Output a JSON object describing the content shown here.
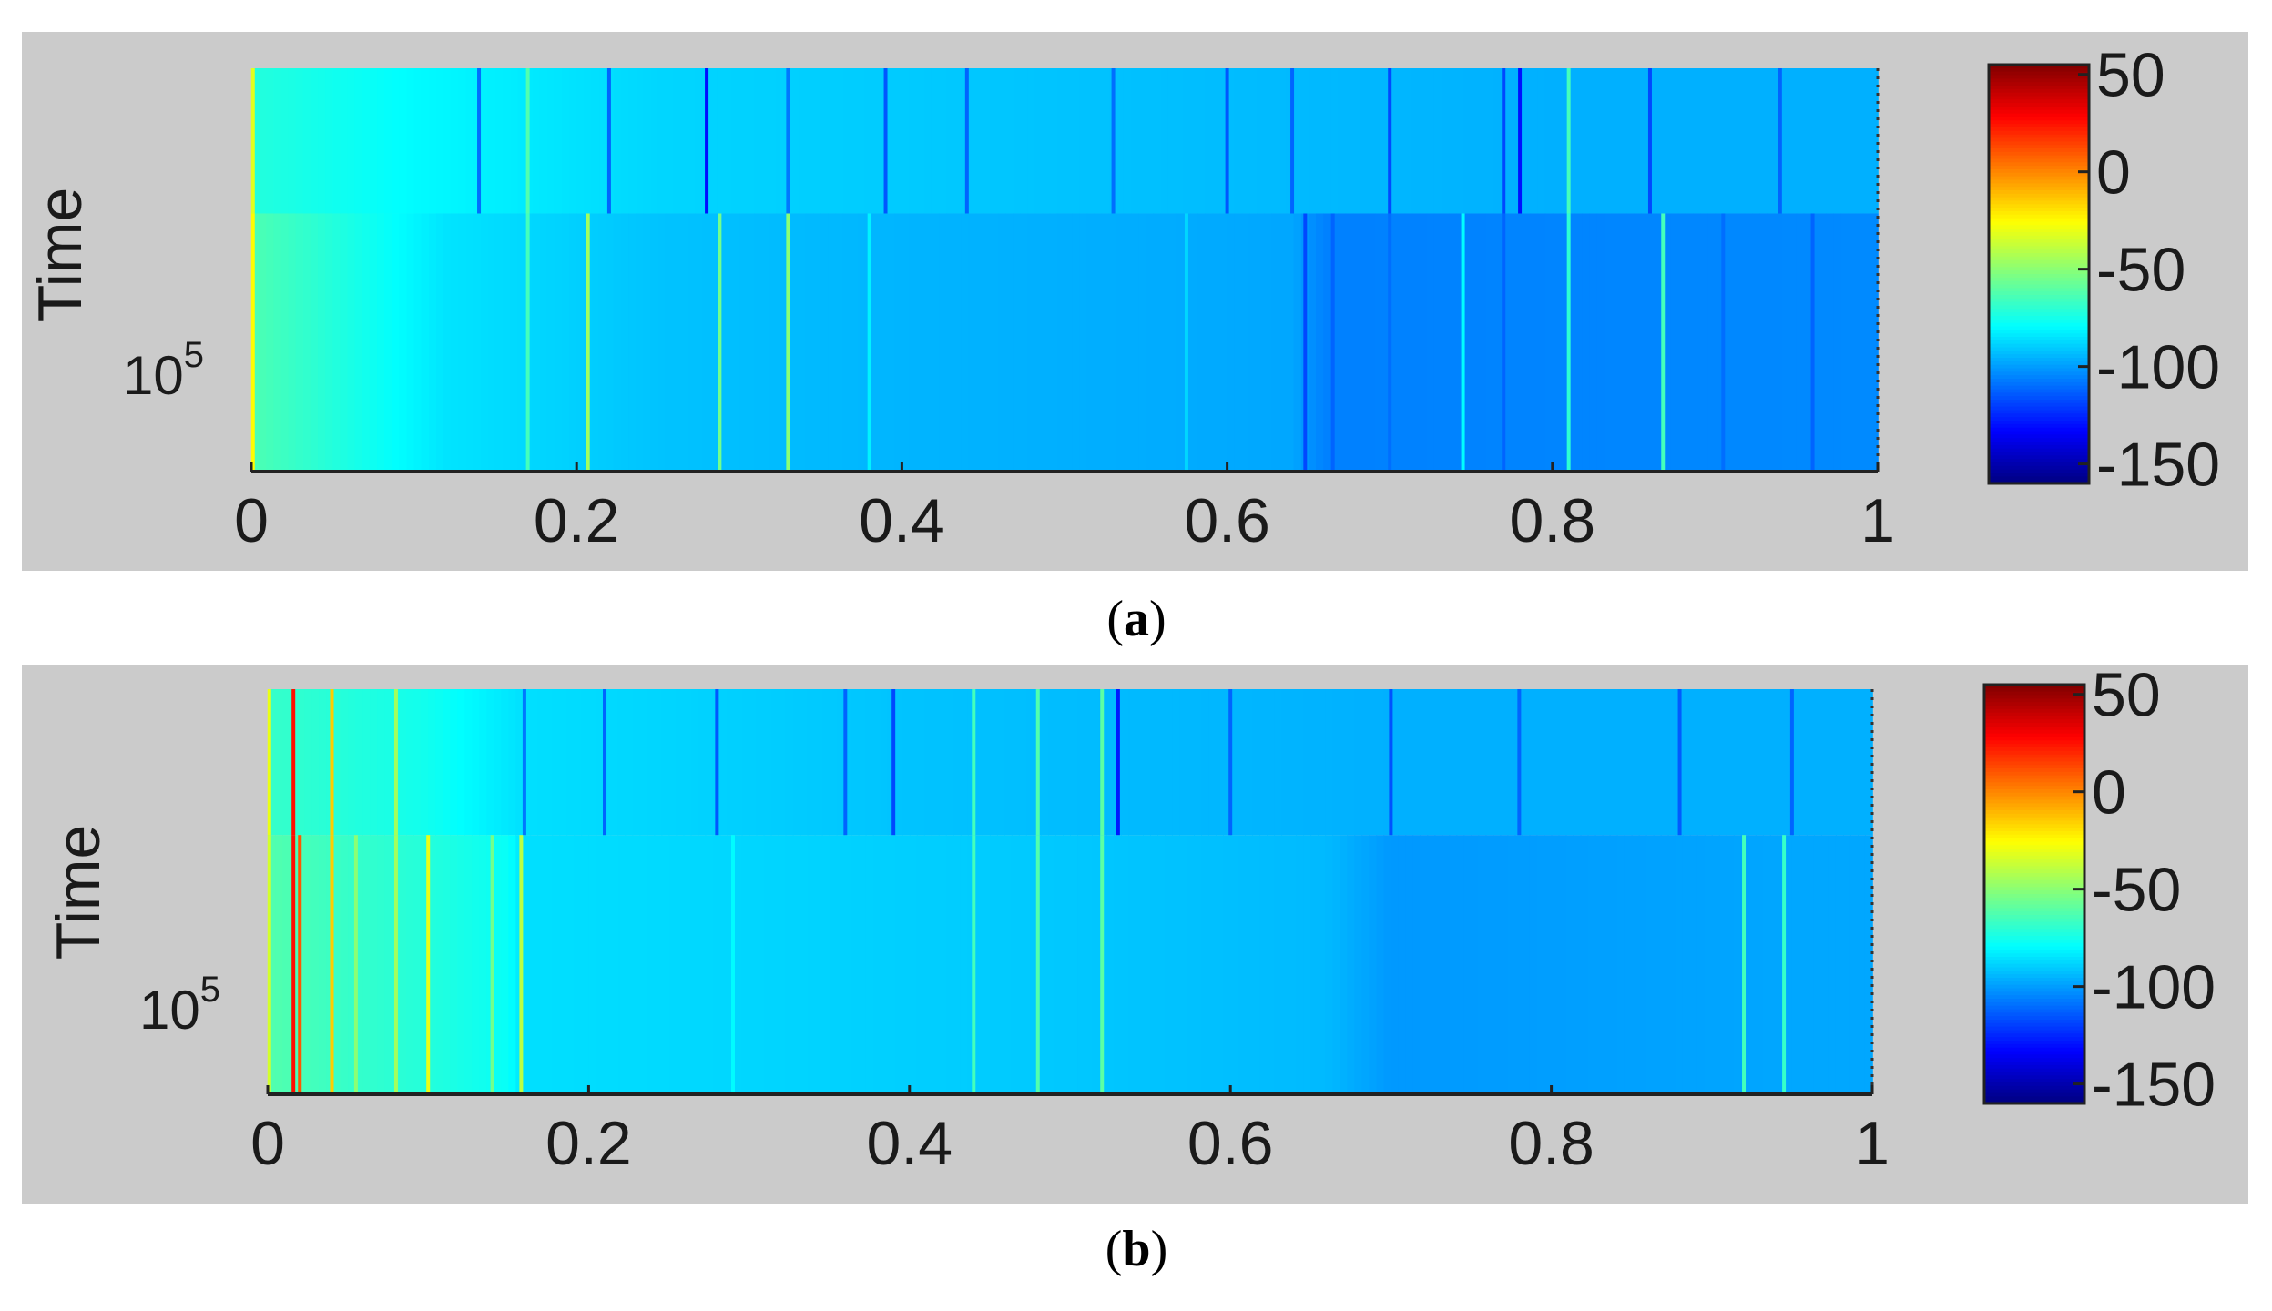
{
  "chart_data": [
    {
      "type": "heatmap",
      "panel_label": "a",
      "ylabel": "Time",
      "ytick_label": {
        "base": "10",
        "exponent": "5"
      },
      "xlim": [
        0,
        1
      ],
      "xticks": [
        "0",
        "0.2",
        "0.4",
        "0.6",
        "0.8",
        "1"
      ],
      "colorbar": {
        "range": [
          -160,
          55
        ],
        "ticks": [
          "50",
          "0",
          "-50",
          "-100",
          "-150"
        ],
        "colormap": "jet"
      },
      "bottom_band_base": [
        [
          0.0,
          -63
        ],
        [
          0.05,
          -72
        ],
        [
          0.12,
          -85
        ],
        [
          0.25,
          -92
        ],
        [
          0.4,
          -95
        ],
        [
          0.57,
          -97
        ],
        [
          0.64,
          -98
        ],
        [
          0.66,
          -106
        ],
        [
          1.0,
          -104
        ]
      ],
      "top_band_base": [
        [
          0.0,
          -72
        ],
        [
          0.1,
          -80
        ],
        [
          0.25,
          -88
        ],
        [
          0.5,
          -92
        ],
        [
          0.8,
          -96
        ],
        [
          1.0,
          -96
        ]
      ],
      "bottom_band_lines": [
        {
          "x": 0.001,
          "v": -25
        },
        {
          "x": 0.17,
          "v": -65
        },
        {
          "x": 0.207,
          "v": -45
        },
        {
          "x": 0.288,
          "v": -55
        },
        {
          "x": 0.33,
          "v": -50
        },
        {
          "x": 0.38,
          "v": -82
        },
        {
          "x": 0.575,
          "v": -88
        },
        {
          "x": 0.648,
          "v": -118
        },
        {
          "x": 0.665,
          "v": -112
        },
        {
          "x": 0.7,
          "v": -110
        },
        {
          "x": 0.745,
          "v": -80
        },
        {
          "x": 0.77,
          "v": -112
        },
        {
          "x": 0.81,
          "v": -70
        },
        {
          "x": 0.868,
          "v": -65
        },
        {
          "x": 0.905,
          "v": -110
        },
        {
          "x": 0.96,
          "v": -112
        }
      ],
      "top_band_lines": [
        {
          "x": 0.001,
          "v": -32
        },
        {
          "x": 0.14,
          "v": -110
        },
        {
          "x": 0.17,
          "v": -62
        },
        {
          "x": 0.22,
          "v": -112
        },
        {
          "x": 0.28,
          "v": -130
        },
        {
          "x": 0.33,
          "v": -108
        },
        {
          "x": 0.39,
          "v": -115
        },
        {
          "x": 0.44,
          "v": -112
        },
        {
          "x": 0.53,
          "v": -110
        },
        {
          "x": 0.6,
          "v": -115
        },
        {
          "x": 0.64,
          "v": -112
        },
        {
          "x": 0.7,
          "v": -118
        },
        {
          "x": 0.77,
          "v": -118
        },
        {
          "x": 0.78,
          "v": -130
        },
        {
          "x": 0.81,
          "v": -65
        },
        {
          "x": 0.86,
          "v": -118
        },
        {
          "x": 0.94,
          "v": -112
        }
      ],
      "band_split_fraction": 0.36
    },
    {
      "type": "heatmap",
      "panel_label": "b",
      "ylabel": "Time",
      "ytick_label": {
        "base": "10",
        "exponent": "5"
      },
      "xlim": [
        0,
        1
      ],
      "xticks": [
        "0",
        "0.2",
        "0.4",
        "0.6",
        "0.8",
        "1"
      ],
      "colorbar": {
        "range": [
          -160,
          55
        ],
        "ticks": [
          "50",
          "0",
          "-50",
          "-100",
          "-150"
        ],
        "colormap": "jet"
      },
      "bottom_band_base": [
        [
          0.0,
          -62
        ],
        [
          0.05,
          -68
        ],
        [
          0.1,
          -72
        ],
        [
          0.15,
          -78
        ],
        [
          0.16,
          -86
        ],
        [
          0.3,
          -88
        ],
        [
          0.5,
          -91
        ],
        [
          0.66,
          -94
        ],
        [
          0.7,
          -101
        ],
        [
          0.95,
          -98
        ],
        [
          1.0,
          -98
        ]
      ],
      "top_band_base": [
        [
          0.0,
          -68
        ],
        [
          0.1,
          -76
        ],
        [
          0.16,
          -86
        ],
        [
          0.4,
          -92
        ],
        [
          0.7,
          -96
        ],
        [
          1.0,
          -96
        ]
      ],
      "bottom_band_lines": [
        {
          "x": 0.001,
          "v": -35
        },
        {
          "x": 0.016,
          "v": 25
        },
        {
          "x": 0.02,
          "v": 10
        },
        {
          "x": 0.04,
          "v": -15
        },
        {
          "x": 0.055,
          "v": -50
        },
        {
          "x": 0.08,
          "v": -45
        },
        {
          "x": 0.1,
          "v": -30
        },
        {
          "x": 0.14,
          "v": -55
        },
        {
          "x": 0.158,
          "v": -40
        },
        {
          "x": 0.29,
          "v": -80
        },
        {
          "x": 0.44,
          "v": -65
        },
        {
          "x": 0.48,
          "v": -62
        },
        {
          "x": 0.52,
          "v": -60
        },
        {
          "x": 0.92,
          "v": -65
        },
        {
          "x": 0.945,
          "v": -68
        }
      ],
      "top_band_lines": [
        {
          "x": 0.001,
          "v": -30
        },
        {
          "x": 0.016,
          "v": 25
        },
        {
          "x": 0.04,
          "v": -15
        },
        {
          "x": 0.08,
          "v": -45
        },
        {
          "x": 0.16,
          "v": -108
        },
        {
          "x": 0.21,
          "v": -112
        },
        {
          "x": 0.28,
          "v": -115
        },
        {
          "x": 0.36,
          "v": -112
        },
        {
          "x": 0.39,
          "v": -118
        },
        {
          "x": 0.44,
          "v": -65
        },
        {
          "x": 0.48,
          "v": -62
        },
        {
          "x": 0.52,
          "v": -60
        },
        {
          "x": 0.53,
          "v": -128
        },
        {
          "x": 0.6,
          "v": -112
        },
        {
          "x": 0.7,
          "v": -116
        },
        {
          "x": 0.78,
          "v": -112
        },
        {
          "x": 0.88,
          "v": -114
        },
        {
          "x": 0.95,
          "v": -112
        }
      ],
      "band_split_fraction": 0.36
    }
  ],
  "captions": [
    {
      "open": "(",
      "label": "a",
      "close": ")"
    },
    {
      "open": "(",
      "label": "b",
      "close": ")"
    }
  ]
}
